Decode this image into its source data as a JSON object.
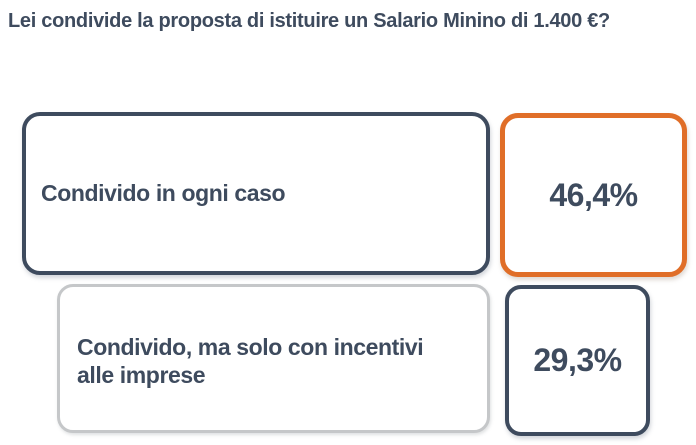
{
  "title": "Lei condivide la proposta di istituire un Salario Minino di 1.400 €?",
  "chart_data": {
    "type": "bar",
    "orientation": "horizontal",
    "title": "Lei condivide la proposta di istituire un Salario Minino di 1.400 €?",
    "categories": [
      "Condivido in ogni caso",
      "Condivido, ma solo con incentivi alle imprese"
    ],
    "values": [
      46.4,
      29.3
    ],
    "value_labels": [
      "46,4%",
      "29,3%"
    ],
    "unit": "%",
    "highlight_index": 0,
    "legend": "none",
    "grid": false
  },
  "options": [
    {
      "label": "Condivido in ogni caso",
      "label_lines": [
        "Condivido in ogni caso"
      ],
      "value_label": "46,4%",
      "highlighted": true
    },
    {
      "label": "Condivido, ma solo con incentivi alle imprese",
      "label_lines": [
        "Condivido, ma solo con incentivi",
        "alle imprese"
      ],
      "value_label": "29,3%",
      "highlighted": false
    }
  ],
  "colors": {
    "text": "#3e4b5e",
    "dark_border": "#3e4b5e",
    "highlight_border": "#e06e28",
    "muted_border": "#c5c7c9",
    "background": "#ffffff"
  }
}
